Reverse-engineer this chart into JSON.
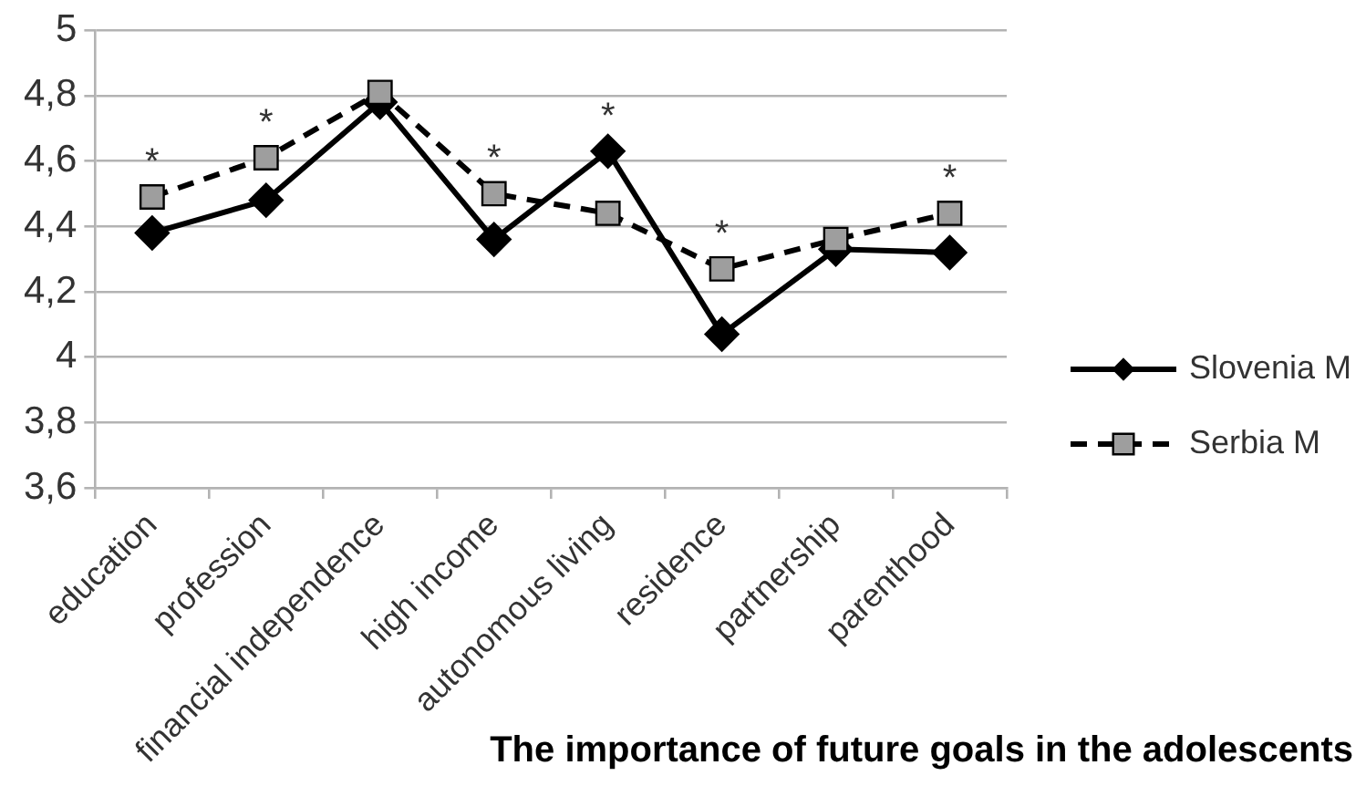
{
  "chart_data": {
    "type": "line",
    "xlabel": "The importance of future goals in the adolescents",
    "categories": [
      "education",
      "profession",
      "financial independence",
      "high income",
      "autonomous living",
      "residence",
      "partnership",
      "parenthood"
    ],
    "series": [
      {
        "name": "Slovenia M",
        "color": "#000000",
        "marker": "diamond",
        "line_style": "solid",
        "values": [
          4.38,
          4.48,
          4.78,
          4.36,
          4.63,
          4.07,
          4.33,
          4.32
        ]
      },
      {
        "name": "Serbia M",
        "color": "#000000",
        "marker": "square",
        "line_style": "dashed",
        "values": [
          4.49,
          4.61,
          4.81,
          4.5,
          4.44,
          4.27,
          4.36,
          4.44
        ]
      }
    ],
    "ylim": [
      3.6,
      5
    ],
    "yticks": [
      {
        "value": 3.6,
        "label": "3,6"
      },
      {
        "value": 3.8,
        "label": "3,8"
      },
      4,
      {
        "value": 4.2,
        "label": "4,2"
      },
      {
        "value": 4.4,
        "label": "4,4"
      },
      {
        "value": 4.6,
        "label": "4,6"
      },
      {
        "value": 4.8,
        "label": "4,8"
      },
      5
    ],
    "grid": "y",
    "legend": "right",
    "annotations": [
      {
        "text": "*",
        "x": "education",
        "y": 4.49
      },
      {
        "text": "*",
        "x": "profession",
        "y": 4.61
      },
      {
        "text": "*",
        "x": "high income",
        "y": 4.5
      },
      {
        "text": "*",
        "x": "autonomous living",
        "y": 4.63
      },
      {
        "text": "*",
        "x": "residence",
        "y": 4.27
      },
      {
        "text": "*",
        "x": "parenthood",
        "y": 4.44
      }
    ]
  }
}
